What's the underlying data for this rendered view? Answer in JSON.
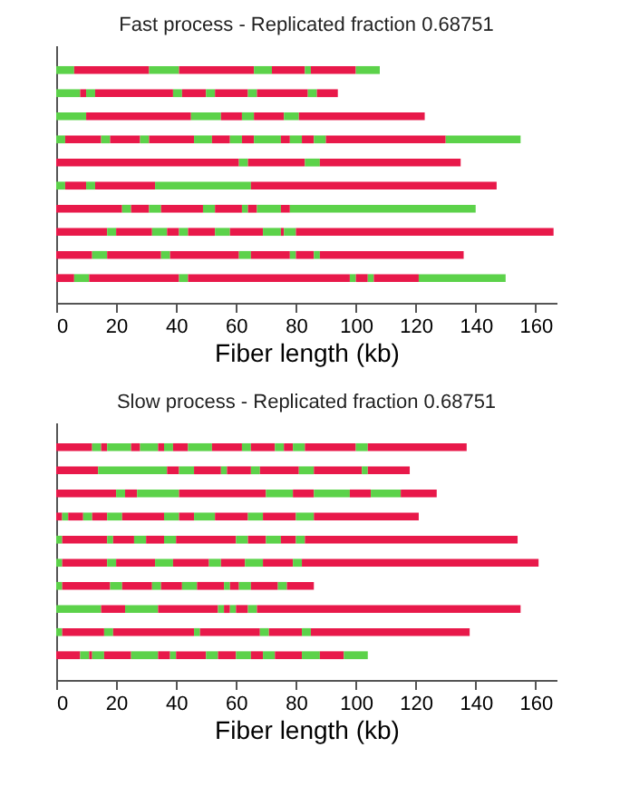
{
  "chart_data": [
    {
      "type": "bar",
      "orientation": "horizontal",
      "stacked": true,
      "title": "Fast process - Replicated fraction 0.68751",
      "xlabel": "Fiber length (kb)",
      "categories": [
        null,
        null,
        null,
        null,
        null,
        null,
        null,
        null,
        null,
        null
      ],
      "xlim": [
        0,
        167
      ],
      "xticks": [
        0,
        20,
        40,
        60,
        80,
        100,
        120,
        140,
        160
      ],
      "tick_labels": "x",
      "grid": false,
      "legend": false,
      "series": [
        {
          "color": "#e8194a",
          "values": [
            null,
            null,
            null,
            null,
            61,
            null,
            22,
            17,
            12,
            6
          ]
        },
        {
          "color": "#5cd24a",
          "values": [
            6,
            8,
            10,
            3,
            3,
            3,
            3,
            3,
            5,
            5
          ]
        },
        {
          "color": "#e8194a",
          "values": [
            25,
            2,
            35,
            12,
            19,
            7,
            6,
            12,
            18,
            30
          ]
        },
        {
          "color": "#5cd24a",
          "values": [
            10,
            3,
            10,
            3,
            5,
            3,
            4,
            5,
            3,
            3
          ]
        },
        {
          "color": "#e8194a",
          "values": [
            25,
            26,
            7,
            10,
            47,
            20,
            14,
            4,
            23,
            54
          ]
        },
        {
          "color": "#5cd24a",
          "values": [
            6,
            3,
            4,
            3,
            null,
            32,
            4,
            3,
            4,
            2
          ]
        },
        {
          "color": "#e8194a",
          "values": [
            11,
            8,
            10,
            15,
            null,
            82,
            9,
            9,
            13,
            4
          ]
        },
        {
          "color": "#5cd24a",
          "values": [
            2,
            3,
            5,
            6,
            null,
            null,
            2,
            5,
            2,
            2
          ]
        },
        {
          "color": "#e8194a",
          "values": [
            15,
            11,
            42,
            6,
            null,
            null,
            3,
            11,
            6,
            15
          ]
        },
        {
          "color": "#5cd24a",
          "values": [
            8,
            3,
            null,
            4,
            null,
            null,
            8,
            6,
            2,
            29
          ]
        },
        {
          "color": "#e8194a",
          "values": [
            null,
            17,
            null,
            4,
            null,
            null,
            3,
            1,
            48,
            null
          ]
        },
        {
          "color": "#5cd24a",
          "values": [
            null,
            3,
            null,
            9,
            null,
            null,
            62,
            4,
            null,
            null
          ]
        },
        {
          "color": "#e8194a",
          "values": [
            null,
            7,
            null,
            3,
            null,
            null,
            null,
            86,
            null,
            null
          ]
        },
        {
          "color": "#5cd24a",
          "values": [
            null,
            null,
            null,
            4,
            null,
            null,
            null,
            null,
            null,
            null
          ]
        },
        {
          "color": "#e8194a",
          "values": [
            null,
            null,
            null,
            4,
            null,
            null,
            null,
            null,
            null,
            null
          ]
        },
        {
          "color": "#5cd24a",
          "values": [
            null,
            null,
            null,
            4,
            null,
            null,
            null,
            null,
            null,
            null
          ]
        },
        {
          "color": "#e8194a",
          "values": [
            null,
            null,
            null,
            40,
            null,
            null,
            null,
            null,
            null,
            null
          ]
        },
        {
          "color": "#5cd24a",
          "values": [
            null,
            null,
            null,
            25,
            null,
            null,
            null,
            null,
            null,
            null
          ]
        }
      ]
    },
    {
      "type": "bar",
      "orientation": "horizontal",
      "stacked": true,
      "title": "Slow process - Replicated fraction 0.68751",
      "xlabel": "Fiber length (kb)",
      "categories": [
        null,
        null,
        null,
        null,
        null,
        null,
        null,
        null,
        null,
        null
      ],
      "xlim": [
        0,
        167
      ],
      "xticks": [
        0,
        20,
        40,
        60,
        80,
        100,
        120,
        140,
        160
      ],
      "tick_labels": "x",
      "grid": false,
      "legend": false,
      "series": [
        {
          "color": "#e8194a",
          "values": [
            12,
            14,
            20,
            2,
            null,
            null,
            null,
            null,
            null,
            8
          ]
        },
        {
          "color": "#5cd24a",
          "values": [
            3,
            23,
            3,
            2,
            2,
            2,
            2,
            15,
            2,
            3
          ]
        },
        {
          "color": "#e8194a",
          "values": [
            2,
            4,
            4,
            5,
            15,
            15,
            16,
            8,
            14,
            1
          ]
        },
        {
          "color": "#5cd24a",
          "values": [
            8,
            5,
            14,
            3,
            2,
            3,
            4,
            11,
            3,
            4
          ]
        },
        {
          "color": "#e8194a",
          "values": [
            3,
            9,
            29,
            5,
            7,
            13,
            10,
            20,
            27,
            9
          ]
        },
        {
          "color": "#5cd24a",
          "values": [
            6,
            2,
            9,
            5,
            4,
            6,
            3,
            2,
            2,
            9
          ]
        },
        {
          "color": "#e8194a",
          "values": [
            2,
            8,
            7,
            14,
            6,
            12,
            7,
            2,
            20,
            4
          ]
        },
        {
          "color": "#5cd24a",
          "values": [
            3,
            3,
            12,
            5,
            4,
            4,
            5,
            2,
            3,
            2
          ]
        },
        {
          "color": "#e8194a",
          "values": [
            5,
            13,
            7,
            5,
            20,
            8,
            9,
            4,
            11,
            10
          ]
        },
        {
          "color": "#5cd24a",
          "values": [
            8,
            5,
            10,
            7,
            4,
            6,
            2,
            3,
            3,
            4
          ]
        },
        {
          "color": "#e8194a",
          "values": [
            10,
            16,
            12,
            11,
            6,
            10,
            3,
            88,
            53,
            6
          ]
        },
        {
          "color": "#5cd24a",
          "values": [
            3,
            2,
            null,
            5,
            5,
            3,
            4,
            null,
            null,
            5
          ]
        },
        {
          "color": "#e8194a",
          "values": [
            8,
            14,
            null,
            11,
            5,
            79,
            9,
            null,
            null,
            4
          ]
        },
        {
          "color": "#5cd24a",
          "values": [
            3,
            null,
            null,
            6,
            3,
            null,
            3,
            null,
            null,
            4
          ]
        },
        {
          "color": "#e8194a",
          "values": [
            3,
            null,
            null,
            35,
            71,
            null,
            9,
            null,
            null,
            9
          ]
        },
        {
          "color": "#5cd24a",
          "values": [
            4,
            null,
            null,
            null,
            null,
            null,
            null,
            null,
            null,
            6
          ]
        },
        {
          "color": "#e8194a",
          "values": [
            17,
            null,
            null,
            null,
            null,
            null,
            null,
            null,
            null,
            8
          ]
        },
        {
          "color": "#5cd24a",
          "values": [
            4,
            null,
            null,
            null,
            null,
            null,
            null,
            null,
            null,
            8
          ]
        },
        {
          "color": "#e8194a",
          "values": [
            33,
            null,
            null,
            null,
            null,
            null,
            null,
            null,
            null,
            null
          ]
        }
      ]
    }
  ]
}
